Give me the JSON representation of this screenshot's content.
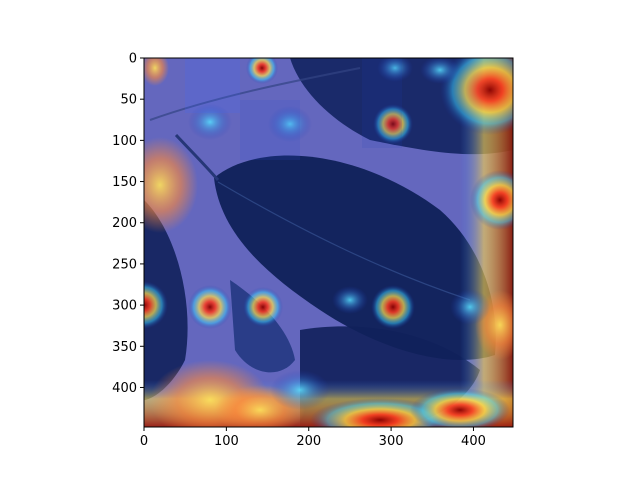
{
  "figure": {
    "x_ticks": [
      "0",
      "100",
      "200",
      "300",
      "400"
    ],
    "y_ticks": [
      "0",
      "50",
      "100",
      "150",
      "200",
      "250",
      "300",
      "350",
      "400"
    ],
    "x_tick_values": [
      0,
      100,
      200,
      300,
      400
    ],
    "y_tick_values": [
      0,
      50,
      100,
      150,
      200,
      250,
      300,
      350,
      400
    ],
    "image_extent": {
      "width": 448,
      "height": 448
    },
    "colormap": "jet",
    "overlay_description_colors": {
      "background_purple": "#9a8fd0",
      "leaf_dark": "#0b1a3a",
      "hot_red": "#9b1c10",
      "hot_yellow": "#f3e45a",
      "cyan": "#46c6e6"
    }
  }
}
